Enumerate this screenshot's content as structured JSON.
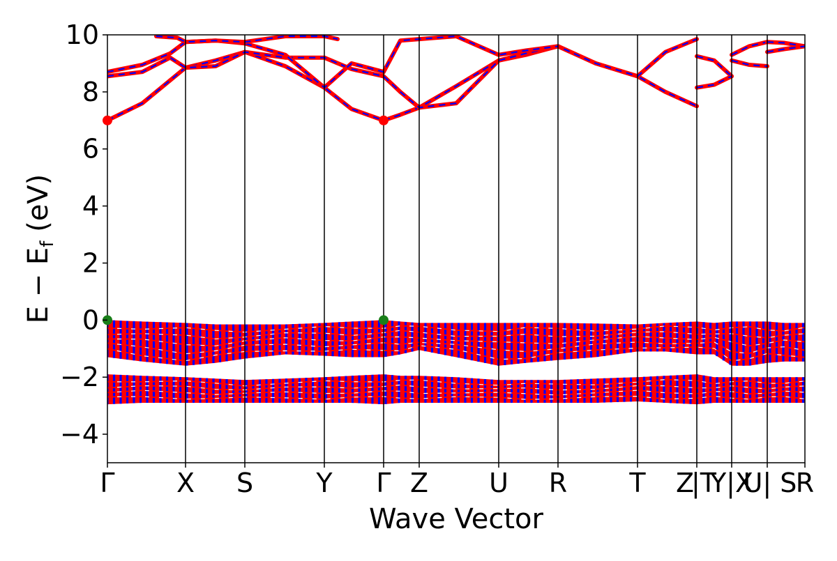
{
  "chart_data": {
    "type": "line",
    "title": "",
    "xlabel": "Wave Vector",
    "ylabel_parts": {
      "main": "E − E",
      "sub": "f",
      "unit": " (eV)"
    },
    "ylim": [
      -5,
      10
    ],
    "yticks": [
      -4,
      -2,
      0,
      2,
      4,
      6,
      8,
      10
    ],
    "ytick_labels": [
      "−4",
      "−2",
      "0",
      "2",
      "4",
      "6",
      "8",
      "10"
    ],
    "kpath": [
      {
        "label": "Γ",
        "k": 0.0
      },
      {
        "label": "X",
        "k": 0.112
      },
      {
        "label": "S",
        "k": 0.197
      },
      {
        "label": "Y",
        "k": 0.311
      },
      {
        "label": "Γ",
        "k": 0.396
      },
      {
        "label": "Z",
        "k": 0.447
      },
      {
        "label": "U",
        "k": 0.561
      },
      {
        "label": "R",
        "k": 0.646
      },
      {
        "label": "T",
        "k": 0.76
      },
      {
        "label": "Z",
        "k": 0.845
      },
      {
        "label": "|T",
        "k": 0.845
      },
      {
        "label": "Y|X",
        "k": 0.895
      },
      {
        "label": "U| S",
        "k": 0.946
      },
      {
        "label": "R",
        "k": 1.0
      }
    ],
    "xlim": [
      0,
      1
    ],
    "spin_colors": {
      "up": "#ff0000",
      "down": "#0000ff"
    },
    "vbm_marker": {
      "color": "#1a7f1a",
      "points": [
        {
          "k": 0.0,
          "e": 0.0
        },
        {
          "k": 0.396,
          "e": 0.0
        }
      ]
    },
    "cbm_marker": {
      "color": "#ff0000",
      "points": [
        {
          "k": 0.0,
          "e": 7.0
        },
        {
          "k": 0.396,
          "e": 7.0
        }
      ]
    },
    "conduction_bands": [
      {
        "name": "cb1",
        "k": [
          0.0,
          0.05,
          0.112,
          0.155,
          0.197,
          0.255,
          0.311,
          0.35,
          0.396,
          0.42,
          0.447,
          0.5,
          0.561,
          0.6,
          0.646,
          0.7,
          0.76,
          0.8,
          0.845
        ],
        "e": [
          7.0,
          7.6,
          8.85,
          9.1,
          9.4,
          8.9,
          8.15,
          7.4,
          7.0,
          7.2,
          7.45,
          8.2,
          9.1,
          9.3,
          9.6,
          9.0,
          8.55,
          8.0,
          7.5
        ]
      },
      {
        "name": "cb2",
        "k": [
          0.0,
          0.05,
          0.09,
          0.112,
          0.155,
          0.197,
          0.255,
          0.311,
          0.35,
          0.396,
          0.42,
          0.447,
          0.5,
          0.561,
          0.6,
          0.646,
          0.7,
          0.76,
          0.8,
          0.845
        ],
        "e": [
          8.55,
          8.7,
          9.2,
          8.85,
          8.9,
          9.4,
          9.2,
          9.2,
          8.8,
          8.55,
          8.0,
          7.45,
          7.6,
          9.1,
          9.35,
          9.6,
          9.0,
          8.55,
          9.4,
          9.85
        ]
      },
      {
        "name": "cb3",
        "k": [
          0.0,
          0.05,
          0.09,
          0.112,
          0.155,
          0.197,
          0.255,
          0.311,
          0.35,
          0.396,
          0.42,
          0.447,
          0.5,
          0.561,
          0.6,
          0.646
        ],
        "e": [
          8.7,
          8.95,
          9.35,
          9.75,
          9.8,
          9.7,
          9.3,
          8.15,
          9.0,
          8.7,
          9.8,
          9.85,
          9.95,
          9.3,
          9.45,
          9.6
        ]
      },
      {
        "name": "cb4",
        "k": [
          0.07,
          0.1,
          0.112,
          0.155,
          0.197,
          0.255,
          0.311,
          0.33
        ],
        "e": [
          9.95,
          9.9,
          9.75,
          9.8,
          9.75,
          9.95,
          9.95,
          9.85
        ]
      },
      {
        "name": "cb5",
        "k": [
          0.845,
          0.87,
          0.895
        ],
        "e": [
          9.25,
          9.1,
          8.55
        ]
      },
      {
        "name": "cb6",
        "k": [
          0.845,
          0.87,
          0.895
        ],
        "e": [
          8.15,
          8.25,
          8.55
        ]
      },
      {
        "name": "cb7",
        "k": [
          0.895,
          0.92,
          0.946
        ],
        "e": [
          9.3,
          9.6,
          9.75
        ]
      },
      {
        "name": "cb8",
        "k": [
          0.895,
          0.92,
          0.946
        ],
        "e": [
          9.1,
          8.95,
          8.9
        ]
      },
      {
        "name": "cb9",
        "k": [
          0.946,
          0.97,
          1.0
        ],
        "e": [
          9.75,
          9.72,
          9.6
        ]
      },
      {
        "name": "cb10",
        "k": [
          0.946,
          0.97,
          1.0
        ],
        "e": [
          9.4,
          9.5,
          9.6
        ]
      }
    ],
    "valence_manifold_1": {
      "k": [
        0.0,
        0.05,
        0.112,
        0.155,
        0.197,
        0.255,
        0.311,
        0.35,
        0.396,
        0.42,
        0.447,
        0.5,
        0.561,
        0.6,
        0.646,
        0.7,
        0.76,
        0.8,
        0.845,
        0.87,
        0.895,
        0.92,
        0.946,
        0.97,
        1.0
      ],
      "top": [
        0.0,
        -0.05,
        -0.1,
        -0.15,
        -0.15,
        -0.15,
        -0.1,
        -0.05,
        0.0,
        -0.05,
        -0.1,
        -0.1,
        -0.1,
        -0.1,
        -0.1,
        -0.12,
        -0.15,
        -0.1,
        -0.05,
        -0.1,
        -0.05,
        -0.05,
        -0.05,
        -0.1,
        -0.1
      ],
      "bottom": [
        -1.3,
        -1.45,
        -1.6,
        -1.5,
        -1.35,
        -1.2,
        -1.25,
        -1.3,
        -1.3,
        -1.2,
        -1.05,
        -1.3,
        -1.6,
        -1.5,
        -1.4,
        -1.3,
        -1.1,
        -1.1,
        -1.2,
        -1.2,
        -1.6,
        -1.6,
        -1.5,
        -1.45,
        -1.45
      ]
    },
    "valence_manifold_2": {
      "k": [
        0.0,
        0.05,
        0.112,
        0.155,
        0.197,
        0.255,
        0.311,
        0.35,
        0.396,
        0.42,
        0.447,
        0.5,
        0.561,
        0.6,
        0.646,
        0.7,
        0.76,
        0.8,
        0.845,
        0.87,
        0.895,
        0.92,
        0.946,
        0.97,
        1.0
      ],
      "top": [
        -1.9,
        -1.95,
        -2.0,
        -2.05,
        -2.1,
        -2.05,
        -2.0,
        -1.95,
        -1.9,
        -1.95,
        -1.95,
        -2.0,
        -2.1,
        -2.1,
        -2.1,
        -2.05,
        -2.0,
        -1.95,
        -1.9,
        -2.0,
        -2.0,
        -2.0,
        -2.0,
        -2.0,
        -2.0
      ],
      "bottom": [
        -2.95,
        -2.9,
        -2.9,
        -2.9,
        -2.9,
        -2.9,
        -2.9,
        -2.9,
        -2.95,
        -2.9,
        -2.9,
        -2.9,
        -2.9,
        -2.9,
        -2.9,
        -2.9,
        -2.85,
        -2.9,
        -2.95,
        -2.9,
        -2.9,
        -2.9,
        -2.9,
        -2.9,
        -2.9
      ]
    }
  }
}
